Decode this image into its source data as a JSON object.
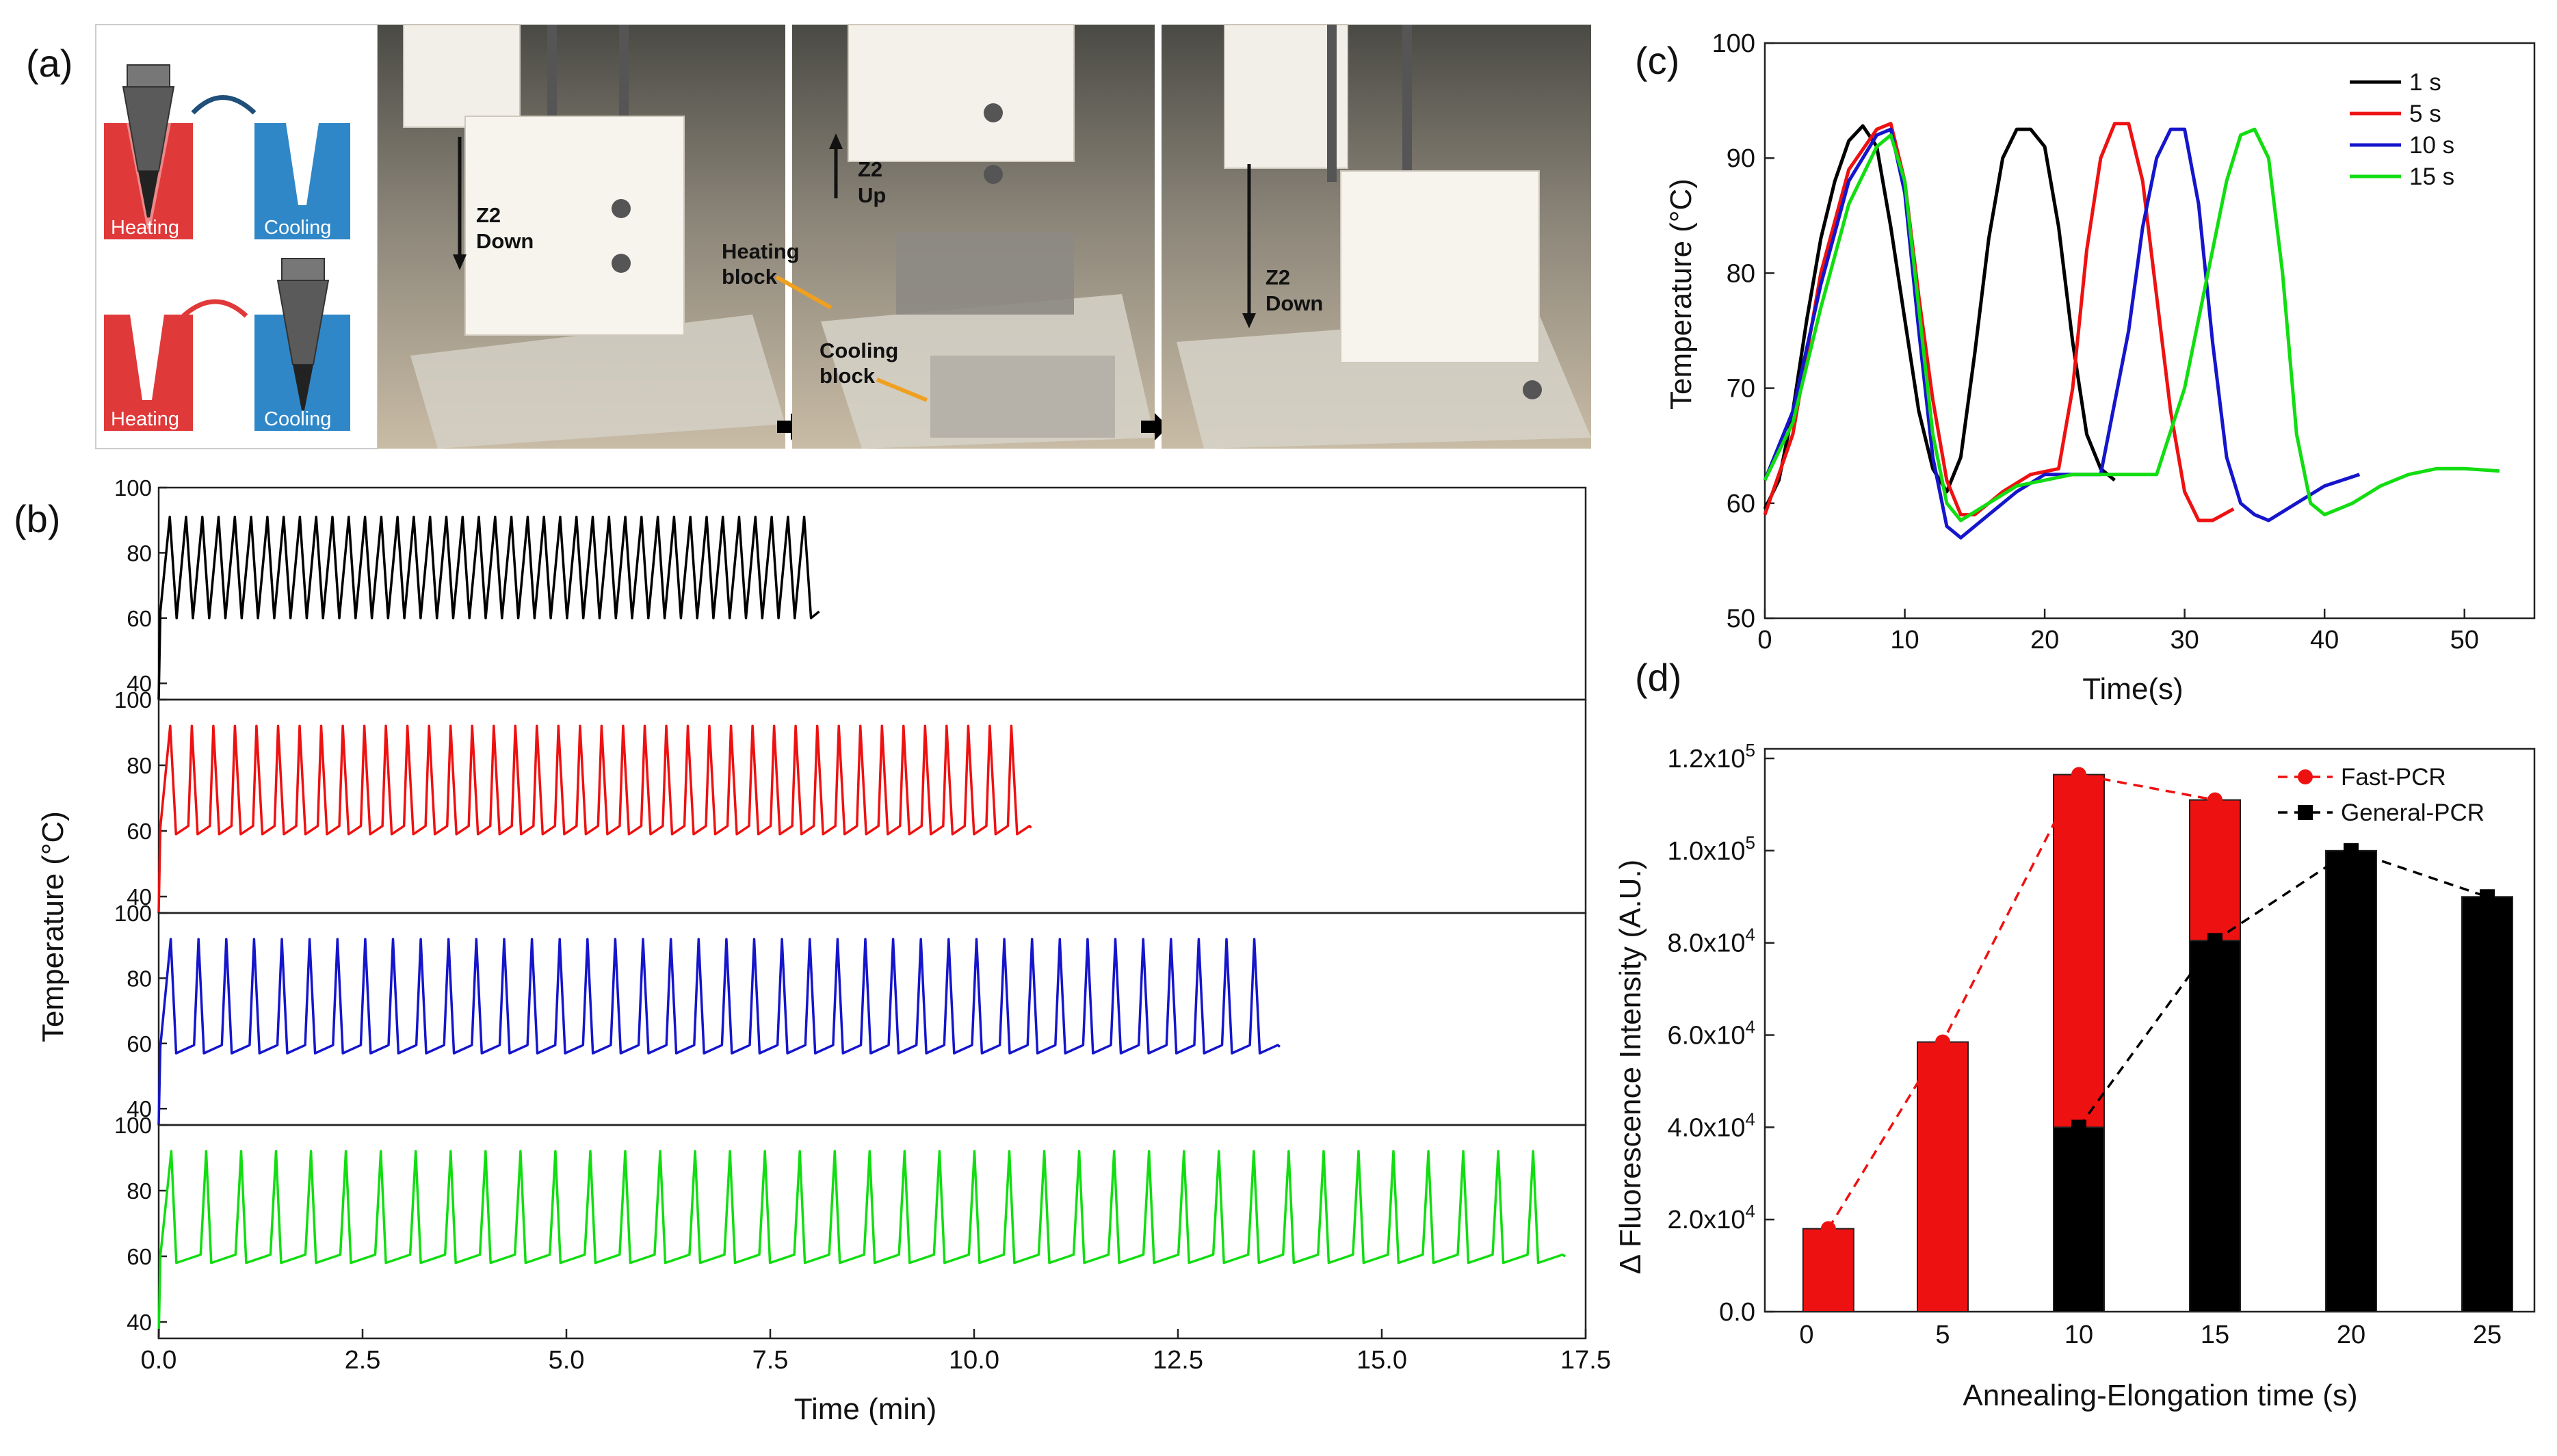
{
  "panel_a": {
    "tag": "(a)",
    "schematic": {
      "heating": "Heating",
      "cooling": "Cooling",
      "heating_color": "#e0393a",
      "cooling_color": "#2f87c8"
    },
    "photo1": {
      "z2": "Z2",
      "dir": "Down"
    },
    "photo2": {
      "z2": "Z2",
      "dir": "Up",
      "heating_block": [
        "Heating",
        "block"
      ],
      "cooling_block": [
        "Cooling",
        "block"
      ]
    },
    "photo3": {
      "z2": "Z2",
      "dir": "Down"
    }
  },
  "chart_data": [
    {
      "id": "b",
      "tag": "(b)",
      "type": "line",
      "xlabel": "Time (min)",
      "ylabel": "Temperature (°C)",
      "xlim": [
        0,
        17.5
      ],
      "x_ticks": [
        "0.0",
        "2.5",
        "5.0",
        "7.5",
        "10.0",
        "12.5",
        "15.0",
        "17.5"
      ],
      "ylim": [
        35,
        100
      ],
      "y_ticks": [
        "40",
        "60",
        "80",
        "100"
      ],
      "series": [
        {
          "name": "1 s",
          "color": "#000000",
          "cycles": 40,
          "end_min": 8.1,
          "high": 91,
          "low": 60,
          "plateau": 0
        },
        {
          "name": "5 s",
          "color": "#ee1111",
          "cycles": 40,
          "end_min": 10.7,
          "high": 92,
          "low": 59,
          "plateau": 0.3
        },
        {
          "name": "10 s",
          "color": "#1515cc",
          "cycles": 40,
          "end_min": 13.75,
          "high": 92,
          "low": 57,
          "plateau": 0.45
        },
        {
          "name": "15 s",
          "color": "#11dd11",
          "cycles": 40,
          "end_min": 17.25,
          "high": 92,
          "low": 58,
          "plateau": 0.55
        }
      ]
    },
    {
      "id": "c",
      "tag": "(c)",
      "type": "line",
      "xlabel": "Time(s)",
      "ylabel": "Temperature (°C)",
      "xlim": [
        0,
        55
      ],
      "x_ticks": [
        "0",
        "10",
        "20",
        "30",
        "40",
        "50"
      ],
      "ylim": [
        50,
        100
      ],
      "y_ticks": [
        "50",
        "60",
        "70",
        "80",
        "90",
        "100"
      ],
      "legend_position": "top-right",
      "series": [
        {
          "name": "1 s",
          "color": "#000000",
          "x": [
            0,
            1,
            2,
            3,
            4,
            5,
            6,
            7,
            8,
            9,
            10,
            11,
            12,
            13,
            14,
            15,
            16,
            17,
            18,
            19,
            20,
            21,
            22,
            23,
            24,
            25
          ],
          "y": [
            59.5,
            62,
            68,
            76,
            83,
            88,
            91.5,
            92.8,
            91,
            84,
            76,
            68,
            63,
            61,
            64,
            73,
            83,
            90,
            92.5,
            92.5,
            91,
            84,
            74,
            66,
            63,
            62
          ]
        },
        {
          "name": "5 s",
          "color": "#ee1111",
          "x": [
            0,
            2,
            4,
            6,
            8,
            9,
            10,
            11,
            12,
            13,
            14,
            15,
            17,
            19,
            21,
            22,
            23,
            24,
            25,
            26,
            27,
            28,
            29,
            30,
            31,
            32,
            33.5
          ],
          "y": [
            59,
            66,
            80,
            89,
            92.5,
            93,
            88,
            78,
            69,
            62,
            59,
            59,
            61,
            62.5,
            63,
            70,
            82,
            90,
            93,
            93,
            88,
            78,
            68,
            61,
            58.5,
            58.5,
            59.5
          ]
        },
        {
          "name": "10 s",
          "color": "#1515cc",
          "x": [
            0,
            2,
            4,
            6,
            8,
            9,
            10,
            11,
            12,
            13,
            14,
            16,
            18,
            20,
            22,
            24,
            26,
            27,
            28,
            29,
            30,
            31,
            32,
            33,
            34,
            35,
            36,
            38,
            40,
            42.5
          ],
          "y": [
            62,
            68,
            79,
            88,
            92,
            92.5,
            87,
            75,
            64,
            58,
            57,
            59,
            61,
            62.5,
            62.5,
            62.5,
            75,
            84,
            90,
            92.5,
            92.5,
            86,
            74,
            64,
            60,
            59,
            58.5,
            60,
            61.5,
            62.5
          ]
        },
        {
          "name": "15 s",
          "color": "#11dd11",
          "x": [
            0,
            2,
            4,
            6,
            8,
            9,
            10,
            11,
            12,
            13,
            14,
            16,
            18,
            20,
            22,
            24,
            26,
            28,
            30,
            32,
            33,
            34,
            35,
            36,
            37,
            38,
            39,
            40,
            42,
            44,
            46,
            48,
            50,
            52.5
          ],
          "y": [
            62,
            67,
            77,
            86,
            91,
            92,
            88,
            77,
            66,
            60,
            58.5,
            60,
            61.5,
            62,
            62.5,
            62.5,
            62.5,
            62.5,
            70,
            82,
            88,
            92,
            92.5,
            90,
            80,
            66,
            60,
            59,
            60,
            61.5,
            62.5,
            63,
            63,
            62.8
          ]
        }
      ]
    },
    {
      "id": "d",
      "tag": "(d)",
      "type": "bar",
      "xlabel": "Annealing-Elongation time (s)",
      "ylabel": "Δ Fluorescence Intensity (A.U.)",
      "categories": [
        "0",
        "5",
        "10",
        "15",
        "20",
        "25"
      ],
      "ylim": [
        0,
        120000
      ],
      "y_ticks": [
        {
          "mant": "0.0",
          "exp": ""
        },
        {
          "mant": "2.0x10",
          "exp": "4"
        },
        {
          "mant": "4.0x10",
          "exp": "4"
        },
        {
          "mant": "6.0x10",
          "exp": "4"
        },
        {
          "mant": "8.0x10",
          "exp": "4"
        },
        {
          "mant": "1.0x10",
          "exp": "5"
        },
        {
          "mant": "1.2x10",
          "exp": "5"
        }
      ],
      "legend_position": "top-right",
      "series": [
        {
          "name": "Fast-PCR",
          "color": "#ee1111",
          "x": [
            1,
            5,
            10,
            15
          ],
          "values": [
            18000,
            58500,
            116500,
            111000
          ]
        },
        {
          "name": "General-PCR",
          "color": "#000000",
          "x": [
            10,
            15,
            20,
            25
          ],
          "values": [
            40000,
            80500,
            100000,
            90000
          ]
        }
      ]
    }
  ]
}
